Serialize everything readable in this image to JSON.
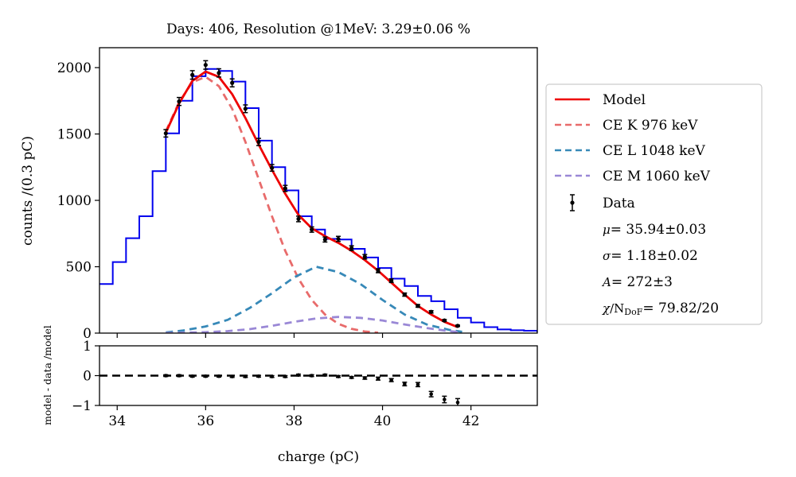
{
  "chart_data": {
    "type": "histogram-fit",
    "title": "Days: 406, Resolution @1MeV: 3.29±0.06 %",
    "main_panel": {
      "ylabel": "counts /(0.3 pC)",
      "xlim": [
        33.6,
        43.5
      ],
      "ylim": [
        0,
        2150
      ],
      "yticks": [
        0,
        500,
        1000,
        1500,
        2000
      ],
      "xticks": [
        34,
        36,
        38,
        40,
        42
      ],
      "histogram": {
        "color": "#0000ee",
        "bin_width": 0.3,
        "bin_edges_start": 33.6,
        "counts": [
          370,
          535,
          715,
          880,
          1220,
          1505,
          1750,
          1935,
          1990,
          1975,
          1895,
          1695,
          1450,
          1250,
          1075,
          880,
          780,
          710,
          705,
          635,
          570,
          490,
          410,
          355,
          280,
          240,
          180,
          115,
          80,
          45,
          28,
          22,
          18,
          12
        ]
      },
      "data_points": {
        "x": [
          35.1,
          35.4,
          35.7,
          36.0,
          36.3,
          36.6,
          36.9,
          37.2,
          37.5,
          37.8,
          38.1,
          38.4,
          38.7,
          39.0,
          39.3,
          39.6,
          39.9,
          40.2,
          40.5,
          40.8,
          41.1,
          41.4,
          41.7
        ],
        "y": [
          1505,
          1745,
          1945,
          2020,
          1960,
          1885,
          1690,
          1440,
          1245,
          1090,
          860,
          780,
          705,
          710,
          640,
          575,
          470,
          395,
          290,
          205,
          160,
          95,
          55
        ],
        "err": [
          28,
          30,
          32,
          32,
          31,
          30,
          29,
          27,
          25,
          23,
          21,
          20,
          19,
          19,
          18,
          17,
          15,
          14,
          12,
          10,
          9,
          7,
          5
        ]
      },
      "series": [
        {
          "name": "Model",
          "style": "solid",
          "color": "#ee0000",
          "x": [
            35.1,
            35.4,
            35.7,
            36.0,
            36.3,
            36.6,
            36.9,
            37.2,
            37.5,
            37.8,
            38.1,
            38.4,
            38.7,
            39.0,
            39.3,
            39.6,
            39.9,
            40.2,
            40.5,
            40.8,
            41.1,
            41.4,
            41.7
          ],
          "y": [
            1510,
            1730,
            1900,
            1970,
            1930,
            1800,
            1620,
            1420,
            1230,
            1050,
            890,
            790,
            730,
            680,
            620,
            550,
            470,
            380,
            290,
            205,
            140,
            85,
            45
          ]
        },
        {
          "name": "CE K 976 keV",
          "style": "dashed",
          "color": "#e86b6b",
          "x": [
            35.1,
            35.4,
            35.7,
            36.0,
            36.3,
            36.6,
            36.9,
            37.2,
            37.5,
            37.8,
            38.1,
            38.4,
            38.7,
            39.0,
            39.3,
            39.6,
            39.9
          ],
          "y": [
            1520,
            1740,
            1890,
            1930,
            1860,
            1690,
            1440,
            1160,
            880,
            620,
            410,
            250,
            140,
            70,
            32,
            12,
            3
          ]
        },
        {
          "name": "CE L 1048 keV",
          "style": "dashed",
          "color": "#3789b8",
          "x": [
            35.1,
            35.5,
            36.0,
            36.5,
            37.0,
            37.5,
            38.0,
            38.5,
            39.0,
            39.5,
            40.0,
            40.5,
            41.0,
            41.5,
            41.8
          ],
          "y": [
            5,
            20,
            50,
            100,
            190,
            300,
            420,
            500,
            460,
            370,
            250,
            140,
            65,
            25,
            10
          ]
        },
        {
          "name": "CE M 1060 keV",
          "style": "dashed",
          "color": "#9a88d6",
          "x": [
            35.1,
            35.5,
            36.0,
            36.5,
            37.0,
            37.5,
            38.0,
            38.5,
            39.0,
            39.5,
            40.0,
            40.5,
            41.0,
            41.5,
            41.8
          ],
          "y": [
            1,
            3,
            7,
            15,
            30,
            55,
            85,
            110,
            122,
            115,
            95,
            65,
            38,
            15,
            6
          ]
        }
      ]
    },
    "residual_panel": {
      "xlabel": "charge (pC)",
      "ylabel": "model - data /model",
      "ylim": [
        -1,
        1
      ],
      "yticks": [
        -1,
        0,
        1
      ],
      "reference_line": 0,
      "points": {
        "x": [
          35.1,
          35.4,
          35.7,
          36.0,
          36.3,
          36.6,
          36.9,
          37.2,
          37.5,
          37.8,
          38.1,
          38.4,
          38.7,
          39.0,
          39.3,
          39.6,
          39.9,
          40.2,
          40.5,
          40.8,
          41.1,
          41.4,
          41.7
        ],
        "y": [
          0.0,
          0.0,
          -0.02,
          -0.02,
          -0.02,
          -0.03,
          -0.03,
          -0.02,
          -0.03,
          -0.03,
          0.02,
          0.0,
          0.02,
          -0.03,
          -0.06,
          -0.08,
          -0.1,
          -0.15,
          -0.28,
          -0.3,
          -0.62,
          -0.8,
          -0.9
        ],
        "err": [
          0.03,
          0.03,
          0.03,
          0.03,
          0.03,
          0.03,
          0.03,
          0.03,
          0.03,
          0.03,
          0.03,
          0.03,
          0.03,
          0.03,
          0.03,
          0.04,
          0.05,
          0.05,
          0.06,
          0.07,
          0.09,
          0.11,
          0.13
        ]
      }
    },
    "legend": {
      "position": "right",
      "entries": [
        {
          "label": "Model",
          "kind": "line-solid",
          "color": "#ee0000"
        },
        {
          "label": "CE K 976 keV",
          "kind": "line-dashed",
          "color": "#e86b6b"
        },
        {
          "label": "CE L 1048 keV",
          "kind": "line-dashed",
          "color": "#3789b8"
        },
        {
          "label": "CE M 1060 keV",
          "kind": "line-dashed",
          "color": "#9a88d6"
        },
        {
          "label": "Data",
          "kind": "errorbar",
          "color": "#000000"
        }
      ],
      "params": {
        "mu": {
          "symbol": "μ",
          "text": "= 35.94±0.03"
        },
        "sigma": {
          "symbol": "σ",
          "text": "= 1.18±0.02"
        },
        "amp": {
          "symbol": "A",
          "text": "= 272±3"
        },
        "chi": {
          "symbol": "χ",
          "over": "/N",
          "sub": "DoF",
          "text": "=  79.82/20"
        }
      }
    }
  }
}
